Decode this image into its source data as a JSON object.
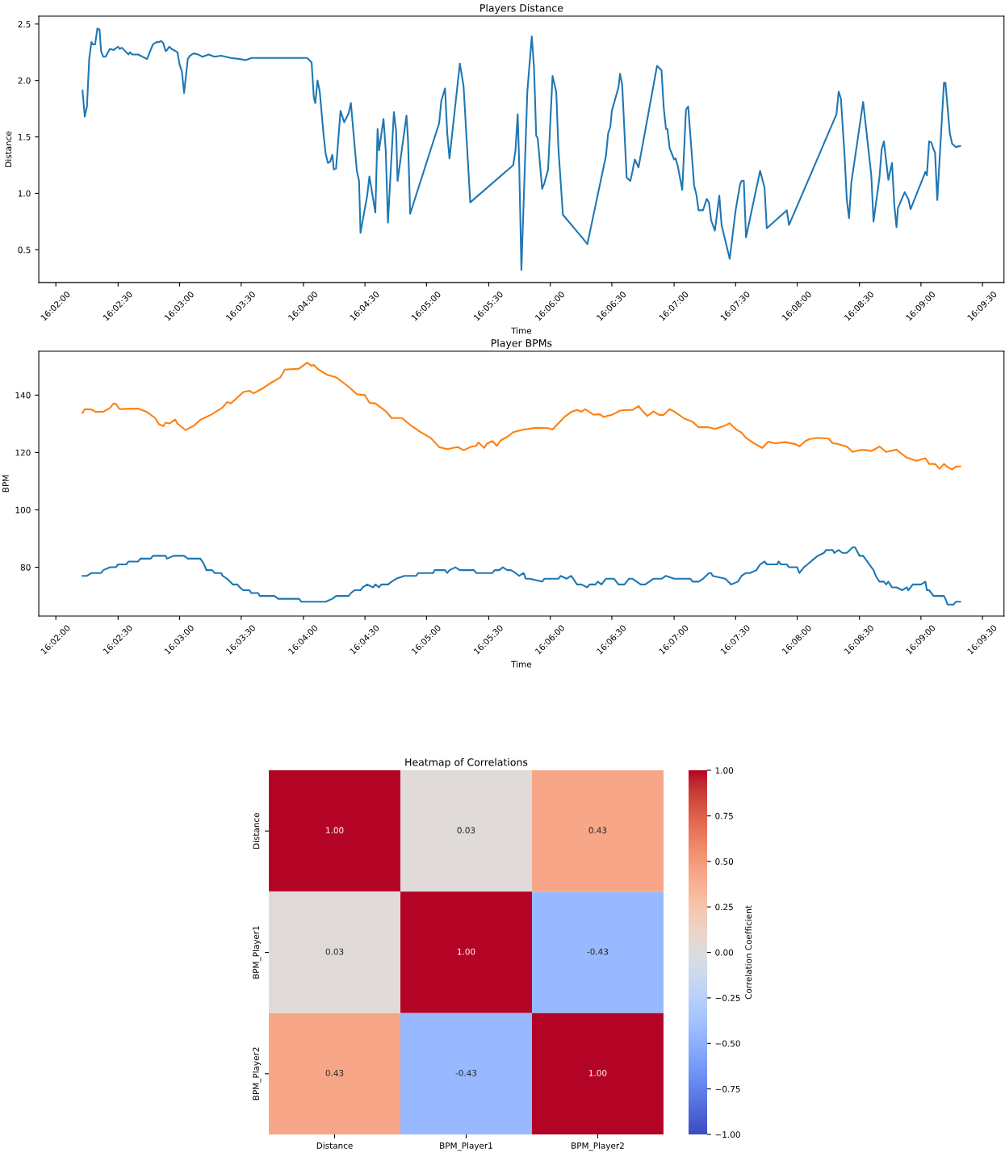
{
  "chart_data": [
    {
      "type": "line",
      "title": "Players Distance",
      "xlabel": "Time",
      "ylabel": "Distance",
      "x": [
        16.0369,
        16.0372,
        16.0375,
        16.0378,
        16.0381,
        16.0383,
        16.0386,
        16.0389,
        16.0392,
        16.0394,
        16.0397,
        16.04,
        16.0406,
        16.0411,
        16.0417,
        16.0419,
        16.0422,
        16.0431,
        16.0433,
        16.0436,
        16.0444,
        16.0456,
        16.0464,
        16.0469,
        16.0472,
        16.0475,
        16.0478,
        16.0481,
        16.0483,
        16.0486,
        16.0489,
        16.0497,
        16.05,
        16.0503,
        16.0506,
        16.0511,
        16.0514,
        16.0519,
        16.0525,
        16.0531,
        16.0539,
        16.0547,
        16.0556,
        16.0569,
        16.0581,
        16.0589,
        16.0597,
        16.0614,
        16.0636,
        16.0656,
        16.0672,
        16.0678,
        16.0681,
        16.0683,
        16.0686,
        16.0689,
        16.0694,
        16.0697,
        16.07,
        16.0703,
        16.0706,
        16.0708,
        16.0711,
        16.0717,
        16.0722,
        16.0728,
        16.0731,
        16.0739,
        16.0742,
        16.0744,
        16.0753,
        16.0756,
        16.0764,
        16.0767,
        16.0769,
        16.0775,
        16.0778,
        16.0781,
        16.0789,
        16.0792,
        16.0794,
        16.0806,
        16.0808,
        16.0811,
        16.085,
        16.0853,
        16.0858,
        16.0861,
        16.0864,
        16.0878,
        16.0883,
        16.0892,
        16.095,
        16.0953,
        16.0956,
        16.0958,
        16.0961,
        16.0969,
        16.0975,
        16.0978,
        16.0981,
        16.0983,
        16.0989,
        16.0992,
        16.0997,
        16.1003,
        16.1008,
        16.1011,
        16.1017,
        16.1044,
        16.105,
        16.1075,
        16.1078,
        16.1081,
        16.1083,
        16.1092,
        16.1094,
        16.1097,
        16.1103,
        16.1108,
        16.1111,
        16.1114,
        16.1119,
        16.1144,
        16.115,
        16.1153,
        16.1156,
        16.1158,
        16.1161,
        16.1167,
        16.1169,
        16.1172,
        16.1178,
        16.1183,
        16.1186,
        16.1194,
        16.1197,
        16.12,
        16.1206,
        16.1211,
        16.1214,
        16.1217,
        16.1222,
        16.1228,
        16.1231,
        16.1242,
        16.125,
        16.1256,
        16.1258,
        16.1261,
        16.1264,
        16.1283,
        16.1289,
        16.1292,
        16.1319,
        16.1322,
        16.1386,
        16.1389,
        16.1392,
        16.1397,
        16.14,
        16.1403,
        16.1406,
        16.1422,
        16.1433,
        16.1436,
        16.1444,
        16.1447,
        16.145,
        16.1456,
        16.1461,
        16.1464,
        16.1467,
        16.1469,
        16.1478,
        16.1483,
        16.1486,
        16.1506,
        16.1508,
        16.1511,
        16.1514,
        16.1517,
        16.1519,
        16.1522,
        16.1531,
        16.1533,
        16.1539,
        16.1542,
        16.1547,
        16.1553
      ],
      "series": [
        {
          "color": "#1f77b4",
          "values": [
            1.91,
            1.68,
            1.77,
            2.19,
            2.34,
            2.32,
            2.32,
            2.46,
            2.45,
            2.26,
            2.21,
            2.21,
            2.28,
            2.27,
            2.3,
            2.28,
            2.29,
            2.23,
            2.25,
            2.23,
            2.23,
            2.19,
            2.32,
            2.34,
            2.34,
            2.35,
            2.33,
            2.26,
            2.27,
            2.3,
            2.28,
            2.25,
            2.14,
            2.08,
            1.89,
            2.19,
            2.22,
            2.24,
            2.23,
            2.21,
            2.23,
            2.21,
            2.22,
            2.2,
            2.19,
            2.18,
            2.2,
            2.2,
            2.2,
            2.2,
            2.2,
            2.16,
            1.85,
            1.8,
            2.0,
            1.9,
            1.53,
            1.35,
            1.27,
            1.28,
            1.34,
            1.21,
            1.22,
            1.73,
            1.63,
            1.71,
            1.8,
            1.2,
            1.11,
            0.65,
            0.98,
            1.15,
            0.83,
            1.57,
            1.38,
            1.66,
            1.38,
            0.74,
            1.72,
            1.55,
            1.11,
            1.69,
            1.48,
            0.82,
            1.62,
            1.82,
            1.93,
            1.53,
            1.31,
            2.15,
            1.95,
            0.92,
            1.25,
            1.38,
            1.7,
            1.27,
            0.32,
            1.9,
            2.39,
            2.12,
            1.51,
            1.49,
            1.04,
            1.09,
            1.21,
            2.04,
            1.9,
            1.39,
            0.81,
            0.6,
            0.55,
            1.33,
            1.53,
            1.59,
            1.73,
            1.94,
            2.06,
            1.96,
            1.14,
            1.11,
            1.2,
            1.3,
            1.23,
            2.13,
            2.09,
            1.76,
            1.57,
            1.57,
            1.4,
            1.3,
            1.31,
            1.24,
            1.03,
            1.74,
            1.77,
            1.07,
            0.99,
            0.85,
            0.85,
            0.95,
            0.92,
            0.76,
            0.67,
            0.98,
            0.72,
            0.42,
            0.85,
            1.08,
            1.11,
            1.11,
            0.61,
            1.2,
            1.05,
            0.69,
            0.85,
            0.72,
            1.7,
            1.9,
            1.84,
            1.33,
            0.94,
            0.78,
            1.09,
            1.81,
            1.16,
            0.75,
            1.14,
            1.39,
            1.46,
            1.12,
            1.27,
            0.9,
            0.7,
            0.87,
            1.01,
            0.95,
            0.86,
            1.19,
            1.16,
            1.46,
            1.45,
            1.39,
            1.36,
            0.94,
            1.98,
            1.98,
            1.53,
            1.44,
            1.41,
            1.42
          ]
        }
      ],
      "xlim": [
        16.031,
        16.1612
      ],
      "xticks": [
        {
          "value": 16.0333,
          "label": "16:02:00"
        },
        {
          "value": 16.0417,
          "label": "16:02:30"
        },
        {
          "value": 16.05,
          "label": "16:03:00"
        },
        {
          "value": 16.0583,
          "label": "16:03:30"
        },
        {
          "value": 16.0667,
          "label": "16:04:00"
        },
        {
          "value": 16.075,
          "label": "16:04:30"
        },
        {
          "value": 16.0833,
          "label": "16:05:00"
        },
        {
          "value": 16.0917,
          "label": "16:05:30"
        },
        {
          "value": 16.1,
          "label": "16:06:00"
        },
        {
          "value": 16.1083,
          "label": "16:06:30"
        },
        {
          "value": 16.1167,
          "label": "16:07:00"
        },
        {
          "value": 16.125,
          "label": "16:07:30"
        },
        {
          "value": 16.1333,
          "label": "16:08:00"
        },
        {
          "value": 16.1417,
          "label": "16:08:30"
        },
        {
          "value": 16.15,
          "label": "16:09:00"
        },
        {
          "value": 16.1583,
          "label": "16:09:30"
        }
      ],
      "ylim": [
        0.21,
        2.57
      ],
      "yticks": [
        0.5,
        {
          "value": 1,
          "label": "1.0"
        },
        1.5,
        {
          "value": 2,
          "label": "2.0"
        },
        2.5
      ],
      "grid": false
    },
    {
      "type": "line",
      "title": "Player BPMs",
      "xlabel": "Time",
      "ylabel": "BPM",
      "series": [
        {
          "color": "#1f77b4",
          "x": [
            16.0369,
            16.0375,
            16.0381,
            16.0394,
            16.0397,
            16.0406,
            16.0414,
            16.0417,
            16.0428,
            16.0431,
            16.0444,
            16.0447,
            16.0461,
            16.0464,
            16.0481,
            16.0483,
            16.0492,
            16.0506,
            16.0511,
            16.0522,
            16.0528,
            16.0533,
            16.0536,
            16.0544,
            16.0547,
            16.0556,
            16.0558,
            16.0564,
            16.0572,
            16.0578,
            16.0581,
            16.0586,
            16.0594,
            16.0597,
            16.0606,
            16.0608,
            16.0628,
            16.0633,
            16.0661,
            16.0664,
            16.0697,
            16.0706,
            16.0711,
            16.0728,
            16.0731,
            16.0736,
            16.0744,
            16.0747,
            16.0753,
            16.0761,
            16.0764,
            16.0769,
            16.0772,
            16.0781,
            16.0786,
            16.0792,
            16.0803,
            16.0819,
            16.0822,
            16.0842,
            16.0844,
            16.0858,
            16.0861,
            16.0864,
            16.0872,
            16.0878,
            16.0897,
            16.09,
            16.0922,
            16.0925,
            16.0931,
            16.0936,
            16.0942,
            16.0947,
            16.0953,
            16.0958,
            16.0964,
            16.0967,
            16.0972,
            16.0989,
            16.0992,
            16.1011,
            16.1014,
            16.1022,
            16.1028,
            16.1031,
            16.1036,
            16.1042,
            16.105,
            16.1053,
            16.1061,
            16.1064,
            16.1069,
            16.1075,
            16.1086,
            16.1092,
            16.11,
            16.1106,
            16.1111,
            16.1122,
            16.1128,
            16.1139,
            16.115,
            16.1156,
            16.1167,
            16.1189,
            16.1192,
            16.12,
            16.1206,
            16.1214,
            16.1217,
            16.1219,
            16.1236,
            16.1244,
            16.1253,
            16.1258,
            16.1264,
            16.1269,
            16.1278,
            16.1283,
            16.1289,
            16.1292,
            16.1306,
            16.1308,
            16.1311,
            16.1319,
            16.1322,
            16.1333,
            16.1336,
            16.1342,
            16.1347,
            16.1356,
            16.1361,
            16.1369,
            16.1372,
            16.1381,
            16.1383,
            16.1389,
            16.1394,
            16.14,
            16.1408,
            16.1411,
            16.1417,
            16.1422,
            16.1436,
            16.1439,
            16.1444,
            16.145,
            16.1453,
            16.1456,
            16.1461,
            16.1467,
            16.1475,
            16.1481,
            16.1483,
            16.1489,
            16.15,
            16.1506,
            16.1508,
            16.1511,
            16.1517,
            16.1531,
            16.1533,
            16.1536,
            16.1544,
            16.1547,
            16.1553
          ],
          "values": [
            77,
            77,
            78,
            78,
            79,
            80,
            80,
            81,
            81,
            82,
            82,
            83,
            83,
            84,
            84,
            83,
            84,
            84,
            83,
            83,
            83,
            81,
            79,
            79,
            78,
            78,
            77,
            76,
            74,
            74,
            73,
            72,
            72,
            71,
            71,
            70,
            70,
            69,
            69,
            68,
            68,
            69,
            70,
            70,
            71,
            72,
            72,
            73,
            74,
            73,
            74,
            73,
            74,
            74,
            75,
            76,
            77,
            77,
            78,
            78,
            79,
            79,
            78,
            79,
            80,
            79,
            79,
            78,
            78,
            79,
            79,
            80,
            79,
            79,
            78,
            77,
            78,
            76,
            76,
            75,
            76,
            76,
            77,
            76,
            77,
            76,
            74,
            74,
            73,
            74,
            74,
            75,
            74,
            76,
            76,
            74,
            74,
            76,
            76,
            74,
            74,
            76,
            76,
            77,
            76,
            76,
            75,
            75,
            76,
            78,
            78,
            77,
            76,
            74,
            75,
            77,
            78,
            78,
            79,
            81,
            82,
            81,
            81,
            82,
            81,
            81,
            80,
            80,
            78,
            80,
            81,
            83,
            84,
            85,
            86,
            86,
            85,
            86,
            85,
            85,
            87,
            87,
            84,
            84,
            79,
            77,
            75,
            75,
            74,
            75,
            73,
            73,
            72,
            73,
            72,
            74,
            74,
            75,
            72,
            72,
            70,
            70,
            69,
            67,
            67,
            68,
            68
          ]
        },
        {
          "color": "#ff7f0e",
          "x": [
            16.0369,
            16.0372,
            16.0381,
            16.0386,
            16.0397,
            16.0406,
            16.0411,
            16.0414,
            16.0419,
            16.0428,
            16.0444,
            16.0456,
            16.0467,
            16.0472,
            16.0478,
            16.0481,
            16.0486,
            16.0494,
            16.0497,
            16.0508,
            16.0519,
            16.0528,
            16.0542,
            16.0558,
            16.0564,
            16.0569,
            16.0586,
            16.0594,
            16.06,
            16.0611,
            16.0622,
            16.0636,
            16.0642,
            16.0661,
            16.0672,
            16.0678,
            16.0681,
            16.0686,
            16.0694,
            16.07,
            16.0711,
            16.0722,
            16.0731,
            16.0739,
            16.075,
            16.0756,
            16.0764,
            16.0778,
            16.0786,
            16.08,
            16.0811,
            16.0825,
            16.0839,
            16.085,
            16.0861,
            16.0869,
            16.0875,
            16.0883,
            16.0894,
            16.09,
            16.0903,
            16.0911,
            16.0914,
            16.0922,
            16.0928,
            16.0933,
            16.0944,
            16.095,
            16.0964,
            16.0981,
            16.0997,
            16.1003,
            16.1011,
            16.1019,
            16.1028,
            16.1036,
            16.1042,
            16.1047,
            16.1058,
            16.1067,
            16.1072,
            16.1083,
            16.1094,
            16.1103,
            16.1111,
            16.1119,
            16.1125,
            16.1131,
            16.1139,
            16.1147,
            16.1153,
            16.1161,
            16.1167,
            16.1181,
            16.1192,
            16.12,
            16.1214,
            16.1222,
            16.1233,
            16.1242,
            16.125,
            16.1258,
            16.1264,
            16.1275,
            16.1286,
            16.1294,
            16.1303,
            16.1317,
            16.1331,
            16.1336,
            16.1344,
            16.135,
            16.1361,
            16.1375,
            16.1381,
            16.1386,
            16.14,
            16.1408,
            16.1417,
            16.1425,
            16.1433,
            16.1439,
            16.1444,
            16.1453,
            16.1467,
            16.1472,
            16.1481,
            16.1494,
            16.1506,
            16.1511,
            16.1519,
            16.1525,
            16.1531,
            16.1536,
            16.1542,
            16.1547,
            16.1553
          ],
          "values": [
            133.8,
            135.1,
            135.0,
            134.2,
            134.2,
            135.5,
            137.1,
            136.9,
            135.1,
            135.2,
            135.3,
            134.1,
            132.0,
            129.9,
            129.2,
            130.4,
            130.1,
            131.5,
            130.1,
            127.8,
            129.3,
            131.4,
            133.1,
            135.7,
            137.6,
            137.1,
            141.1,
            141.5,
            140.6,
            142.2,
            144.1,
            146.2,
            148.9,
            149.2,
            151.3,
            150.2,
            150.5,
            149.2,
            147.8,
            147.0,
            146.2,
            144.1,
            142.2,
            140.3,
            140.0,
            137.3,
            137.1,
            134.4,
            132.0,
            132.0,
            129.6,
            127.1,
            125.0,
            121.9,
            121.2,
            121.6,
            121.9,
            120.8,
            122.1,
            122.3,
            123.5,
            121.6,
            123.0,
            124.0,
            122.3,
            124.2,
            125.8,
            127.1,
            128.0,
            128.6,
            128.5,
            128.0,
            130.2,
            132.4,
            134.1,
            134.8,
            134.2,
            135.1,
            133.2,
            133.3,
            132.4,
            133.1,
            134.6,
            134.8,
            134.8,
            136.2,
            134.3,
            132.7,
            134.3,
            133.1,
            133.1,
            135.1,
            134.3,
            131.8,
            130.7,
            128.8,
            128.8,
            128.2,
            129.1,
            130.2,
            128.2,
            126.9,
            125.1,
            123.2,
            121.6,
            123.8,
            123.2,
            123.6,
            122.9,
            122.1,
            124.0,
            124.7,
            125.1,
            124.9,
            123.2,
            123.1,
            122.1,
            120.2,
            120.8,
            120.9,
            120.5,
            121.3,
            122.1,
            120.2,
            121.0,
            119.9,
            118.2,
            117.1,
            118.0,
            116.0,
            116.0,
            114.3,
            116.0,
            114.9,
            114.1,
            115.1,
            115.1
          ]
        }
      ],
      "xlim": [
        16.031,
        16.1612
      ],
      "xticks": [
        {
          "value": 16.0333,
          "label": "16:02:00"
        },
        {
          "value": 16.0417,
          "label": "16:02:30"
        },
        {
          "value": 16.05,
          "label": "16:03:00"
        },
        {
          "value": 16.0583,
          "label": "16:03:30"
        },
        {
          "value": 16.0667,
          "label": "16:04:00"
        },
        {
          "value": 16.075,
          "label": "16:04:30"
        },
        {
          "value": 16.0833,
          "label": "16:05:00"
        },
        {
          "value": 16.0917,
          "label": "16:05:30"
        },
        {
          "value": 16.1,
          "label": "16:06:00"
        },
        {
          "value": 16.1083,
          "label": "16:06:30"
        },
        {
          "value": 16.1167,
          "label": "16:07:00"
        },
        {
          "value": 16.125,
          "label": "16:07:30"
        },
        {
          "value": 16.1333,
          "label": "16:08:00"
        },
        {
          "value": 16.1417,
          "label": "16:08:30"
        },
        {
          "value": 16.15,
          "label": "16:09:00"
        },
        {
          "value": 16.1583,
          "label": "16:09:30"
        }
      ],
      "ylim": [
        63,
        155.3
      ],
      "yticks": [
        80,
        100,
        120,
        140
      ],
      "grid": false
    },
    {
      "type": "heatmap",
      "title": "Heatmap of Correlations",
      "clabel": "Correlation Coefficient",
      "categories": [
        "Distance",
        "BPM_Player1",
        "BPM_Player2"
      ],
      "y_categories": [
        "Distance",
        "BPM_Player1",
        "BPM_Player2"
      ],
      "cells": [
        [
          1,
          0.03,
          0.43
        ],
        [
          0.03,
          1,
          -0.43
        ],
        [
          0.43,
          -0.43,
          1
        ]
      ],
      "cell_labels": [
        [
          "1.00",
          "0.03",
          "0.43"
        ],
        [
          "0.03",
          "1.00",
          "-0.43"
        ],
        [
          "0.43",
          "-0.43",
          "1.00"
        ]
      ],
      "clim": [
        -1,
        1
      ],
      "cticks": [
        {
          "value": -1,
          "label": "−1.00"
        },
        {
          "value": -0.75,
          "label": "−0.75"
        },
        {
          "value": -0.5,
          "label": "−0.50"
        },
        {
          "value": -0.25,
          "label": "−0.25"
        },
        {
          "value": 0,
          "label": "0.00"
        },
        {
          "value": 0.25,
          "label": "0.25"
        },
        {
          "value": 0.5,
          "label": "0.50"
        },
        {
          "value": 0.75,
          "label": "0.75"
        },
        {
          "value": 1,
          "label": "1.00"
        }
      ]
    }
  ]
}
